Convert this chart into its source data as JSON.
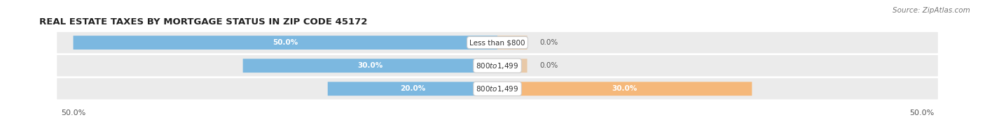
{
  "title": "REAL ESTATE TAXES BY MORTGAGE STATUS IN ZIP CODE 45172",
  "source": "Source: ZipAtlas.com",
  "rows": [
    {
      "label": "Less than $800",
      "without_mortgage": 50.0,
      "with_mortgage": 0.0
    },
    {
      "label": "$800 to $1,499",
      "without_mortgage": 30.0,
      "with_mortgage": 0.0
    },
    {
      "label": "$800 to $1,499",
      "without_mortgage": 20.0,
      "with_mortgage": 30.0
    }
  ],
  "xlim": [
    -55,
    55
  ],
  "color_without": "#7cb8e0",
  "color_with": "#f5b87a",
  "color_with_small": "#e8c9a8",
  "bar_height": 0.58,
  "bg_row_color": "#ebebeb",
  "title_fontsize": 9.5,
  "source_fontsize": 7.5,
  "label_fontsize": 7.5,
  "value_fontsize": 7.5,
  "axis_tick_fontsize": 8
}
